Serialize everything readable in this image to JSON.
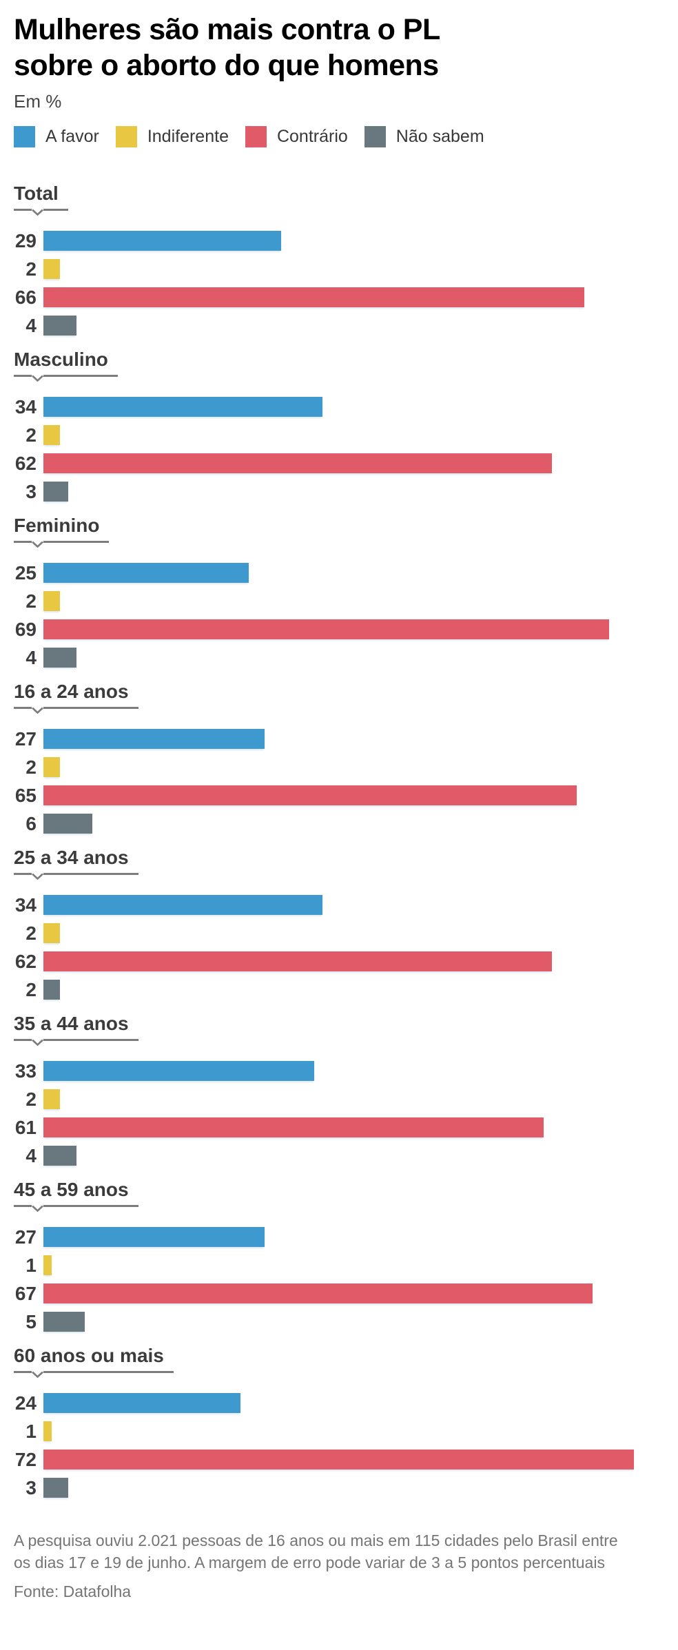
{
  "title": {
    "line1": "Mulheres são mais contra o PL",
    "line2": "sobre o aborto do que homens"
  },
  "subtitle": "Em %",
  "legend": [
    {
      "key": "a-favor",
      "label": "A favor",
      "color": "#3e99cf"
    },
    {
      "key": "indiferente",
      "label": "Indiferente",
      "color": "#e8c742"
    },
    {
      "key": "contrario",
      "label": "Contrário",
      "color": "#e05a68"
    },
    {
      "key": "nao-sabem",
      "label": "Não sabem",
      "color": "#69787f"
    }
  ],
  "chart_data": {
    "type": "bar",
    "orientation": "horizontal",
    "unit": "%",
    "title": "Mulheres são mais contra o PL sobre o aborto do que homens",
    "subtitle": "Em %",
    "series_names": [
      "A favor",
      "Indiferente",
      "Contrário",
      "Não sabem"
    ],
    "xlim": [
      0,
      77.4
    ],
    "grid": false,
    "legend_position": "top",
    "groups": [
      {
        "label": "Total",
        "values": [
          29,
          2,
          66,
          4
        ]
      },
      {
        "label": "Masculino",
        "values": [
          34,
          2,
          62,
          3
        ]
      },
      {
        "label": "Feminino",
        "values": [
          25,
          2,
          69,
          4
        ]
      },
      {
        "label": "16 a 24 anos",
        "values": [
          27,
          2,
          65,
          6
        ]
      },
      {
        "label": "25 a 34 anos",
        "values": [
          34,
          2,
          62,
          2
        ]
      },
      {
        "label": "35 a 44 anos",
        "values": [
          33,
          2,
          61,
          4
        ]
      },
      {
        "label": "45 a 59 anos",
        "values": [
          27,
          1,
          67,
          5
        ]
      },
      {
        "label": "60 anos ou mais",
        "values": [
          24,
          1,
          72,
          3
        ]
      }
    ]
  },
  "footer": {
    "note": [
      "A pesquisa ouviu 2.021 pessoas de 16 anos ou mais em 115 cidades pelo Brasil entre",
      "os dias 17 e 19 de junho. A margem de erro pode variar de 3 a 5 pontos percentuais"
    ],
    "source": "Fonte: Datafolha"
  },
  "colors": {
    "title_text": "#000000",
    "heading_text": "#3b3b3b",
    "value_text": "#3d3d3d",
    "underline": "#7c7c7c",
    "footer_text": "#757575",
    "background": "#ffffff"
  }
}
